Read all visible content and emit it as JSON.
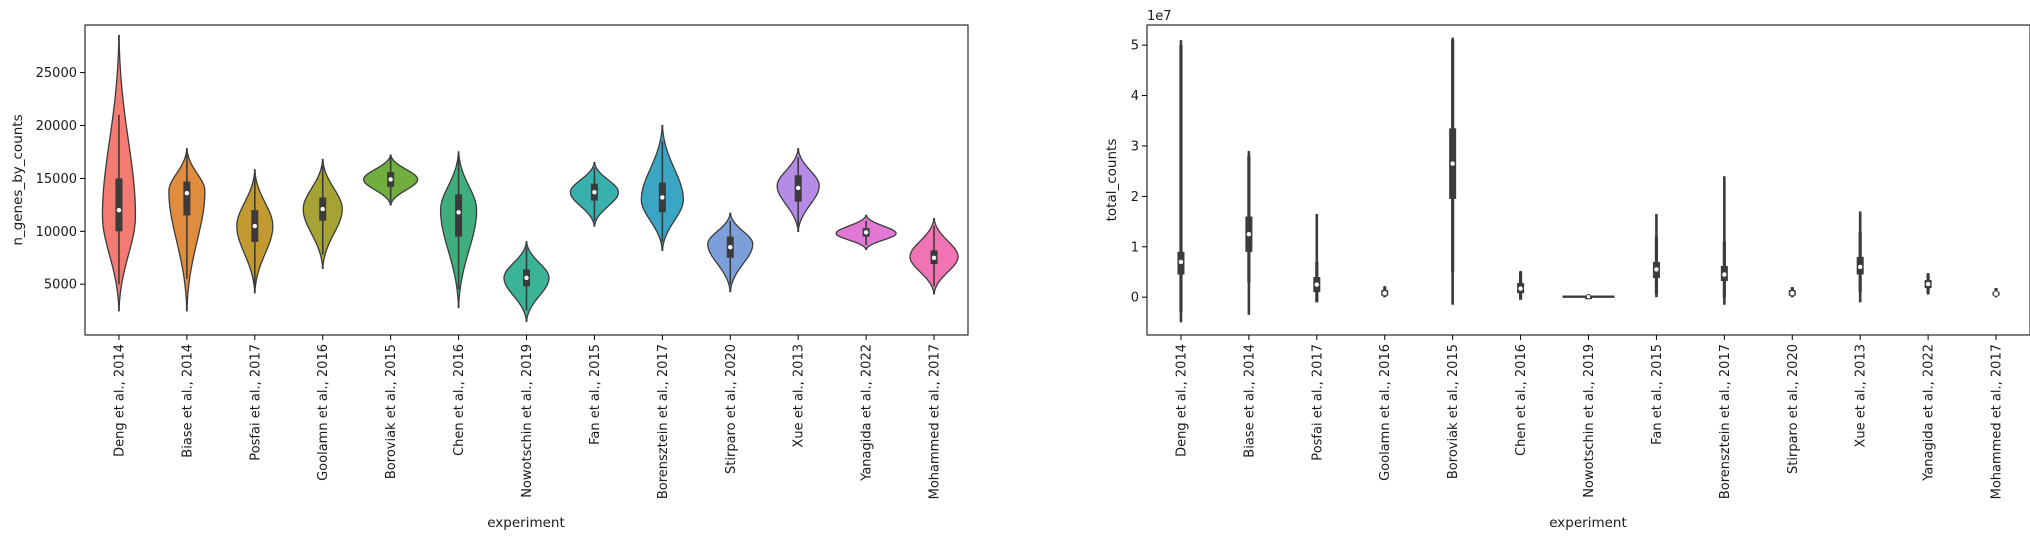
{
  "chart_data": [
    {
      "type": "violin",
      "xlabel": "experiment",
      "ylabel": "n_genes_by_counts",
      "ylim": [
        200,
        29500
      ],
      "yticks": [
        5000,
        10000,
        15000,
        20000,
        25000
      ],
      "ytick_labels": [
        "5000",
        "10000",
        "15000",
        "20000",
        "25000"
      ],
      "categories": [
        "Deng et al., 2014",
        "Biase et al., 2014",
        "Posfai et al., 2017",
        "Goolamn et al., 2016",
        "Boroviak et al., 2015",
        "Chen et al., 2016",
        "Nowotschin et al., 2019",
        "Fan et al., 2015",
        "Borensztein et al., 2017",
        "Stirparo et al., 2020",
        "Xue et al., 2013",
        "Yanagida et al., 2022",
        "Mohammed et al., 2017"
      ],
      "colors": [
        "#f37b72",
        "#e08c3e",
        "#c29a30",
        "#a5a335",
        "#71ad3f",
        "#3eaf7c",
        "#3ab397",
        "#38b0ad",
        "#3aa6c4",
        "#7d9fd9",
        "#b58be6",
        "#e377d4",
        "#f074b3"
      ],
      "violins": [
        {
          "min": 2500,
          "max": 28500,
          "q1": 10000,
          "median": 12000,
          "q3": 15000,
          "wlo": 5000,
          "whi": 21000,
          "peak": 11500,
          "width": 0.55
        },
        {
          "min": 2500,
          "max": 17800,
          "q1": 11500,
          "median": 13600,
          "q3": 14700,
          "wlo": 5500,
          "whi": 17500,
          "peak": 13800,
          "width": 0.6
        },
        {
          "min": 4200,
          "max": 15800,
          "q1": 9000,
          "median": 10500,
          "q3": 12000,
          "wlo": 4800,
          "whi": 15500,
          "peak": 10500,
          "width": 0.6
        },
        {
          "min": 6500,
          "max": 16800,
          "q1": 11000,
          "median": 12100,
          "q3": 13200,
          "wlo": 7800,
          "whi": 16200,
          "peak": 12100,
          "width": 0.65
        },
        {
          "min": 12500,
          "max": 17200,
          "q1": 14200,
          "median": 14900,
          "q3": 15600,
          "wlo": 12800,
          "whi": 17000,
          "peak": 14900,
          "width": 0.9
        },
        {
          "min": 2800,
          "max": 17500,
          "q1": 9500,
          "median": 11800,
          "q3": 13500,
          "wlo": 4500,
          "whi": 17000,
          "peak": 12000,
          "width": 0.6
        },
        {
          "min": 1500,
          "max": 9000,
          "q1": 4800,
          "median": 5600,
          "q3": 6400,
          "wlo": 2500,
          "whi": 8500,
          "peak": 5600,
          "width": 0.75
        },
        {
          "min": 10500,
          "max": 16500,
          "q1": 12900,
          "median": 13700,
          "q3": 14500,
          "wlo": 11000,
          "whi": 16000,
          "peak": 13700,
          "width": 0.8
        },
        {
          "min": 8200,
          "max": 20000,
          "q1": 11800,
          "median": 13200,
          "q3": 14600,
          "wlo": 9000,
          "whi": 18500,
          "peak": 13000,
          "width": 0.7
        },
        {
          "min": 4300,
          "max": 11700,
          "q1": 7500,
          "median": 8500,
          "q3": 9500,
          "wlo": 5000,
          "whi": 11000,
          "peak": 8800,
          "width": 0.75
        },
        {
          "min": 10000,
          "max": 17800,
          "q1": 12800,
          "median": 14100,
          "q3": 15300,
          "wlo": 10500,
          "whi": 17000,
          "peak": 14300,
          "width": 0.7
        },
        {
          "min": 8300,
          "max": 11500,
          "q1": 9500,
          "median": 9900,
          "q3": 10300,
          "wlo": 8700,
          "whi": 11000,
          "peak": 9800,
          "width": 1.0
        },
        {
          "min": 4100,
          "max": 11200,
          "q1": 6900,
          "median": 7500,
          "q3": 8200,
          "wlo": 4800,
          "whi": 10500,
          "peak": 7600,
          "width": 0.8
        }
      ]
    },
    {
      "type": "violin",
      "xlabel": "experiment",
      "ylabel": "total_counts",
      "offset_text": "1e7",
      "ylim": [
        -0.75,
        5.4
      ],
      "yticks": [
        0,
        1,
        2,
        3,
        4,
        5
      ],
      "ytick_labels": [
        "0",
        "1",
        "2",
        "3",
        "4",
        "5"
      ],
      "categories": [
        "Deng et al., 2014",
        "Biase et al., 2014",
        "Posfai et al., 2017",
        "Goolamn et al., 2016",
        "Boroviak et al., 2015",
        "Chen et al., 2016",
        "Nowotschin et al., 2019",
        "Fan et al., 2015",
        "Borensztein et al., 2017",
        "Stirparo et al., 2020",
        "Xue et al., 2013",
        "Yanagida et al., 2022",
        "Mohammed et al., 2017"
      ],
      "colors": [
        "#f37b72",
        "#e08c3e",
        "#c29a30",
        "#a5a335",
        "#71ad3f",
        "#3eaf7c",
        "#3ab397",
        "#38b0ad",
        "#3aa6c4",
        "#7d9fd9",
        "#b58be6",
        "#e377d4",
        "#f074b3"
      ],
      "violins": [
        {
          "min": -0.5,
          "max": 5.1,
          "q1": 0.45,
          "median": 0.7,
          "q3": 0.9,
          "wlo": -0.3,
          "whi": 5.0
        },
        {
          "min": -0.35,
          "max": 2.9,
          "q1": 0.9,
          "median": 1.25,
          "q3": 1.6,
          "wlo": 0.3,
          "whi": 2.8
        },
        {
          "min": -0.1,
          "max": 1.65,
          "q1": 0.1,
          "median": 0.25,
          "q3": 0.4,
          "wlo": -0.1,
          "whi": 0.7
        },
        {
          "min": 0.0,
          "max": 0.22,
          "q1": 0.03,
          "median": 0.08,
          "q3": 0.14,
          "wlo": 0.0,
          "whi": 0.2
        },
        {
          "min": -0.15,
          "max": 5.15,
          "q1": 1.95,
          "median": 2.65,
          "q3": 3.35,
          "wlo": 0.5,
          "whi": 5.1
        },
        {
          "min": -0.05,
          "max": 0.52,
          "q1": 0.08,
          "median": 0.17,
          "q3": 0.28,
          "wlo": -0.05,
          "whi": 0.5
        },
        {
          "min": 0.0,
          "max": 0.03,
          "q1": 0.0,
          "median": 0.01,
          "q3": 0.02,
          "wlo": 0.0,
          "whi": 0.03
        },
        {
          "min": 0.0,
          "max": 1.65,
          "q1": 0.38,
          "median": 0.55,
          "q3": 0.7,
          "wlo": 0.05,
          "whi": 1.2
        },
        {
          "min": -0.15,
          "max": 2.4,
          "q1": 0.32,
          "median": 0.45,
          "q3": 0.62,
          "wlo": 0.0,
          "whi": 1.1
        },
        {
          "min": 0.0,
          "max": 0.2,
          "q1": 0.03,
          "median": 0.08,
          "q3": 0.14,
          "wlo": 0.0,
          "whi": 0.2
        },
        {
          "min": -0.1,
          "max": 1.7,
          "q1": 0.45,
          "median": 0.6,
          "q3": 0.8,
          "wlo": 0.1,
          "whi": 1.3
        },
        {
          "min": 0.05,
          "max": 0.48,
          "q1": 0.18,
          "median": 0.26,
          "q3": 0.34,
          "wlo": 0.08,
          "whi": 0.45
        },
        {
          "min": 0.0,
          "max": 0.18,
          "q1": 0.03,
          "median": 0.07,
          "q3": 0.11,
          "wlo": 0.0,
          "whi": 0.18
        }
      ]
    }
  ]
}
